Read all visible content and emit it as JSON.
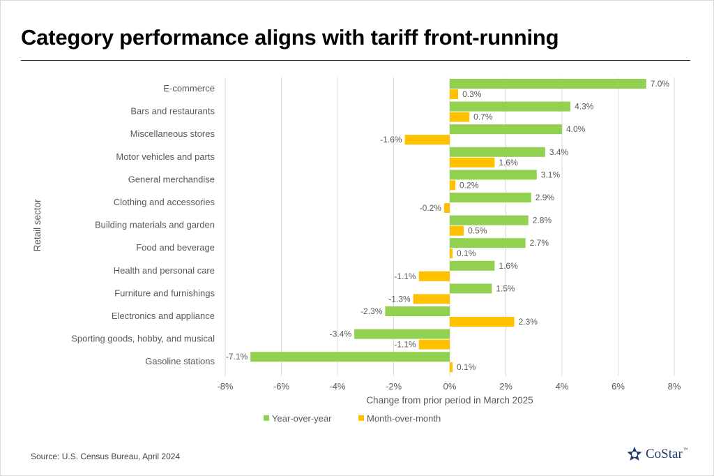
{
  "title": "Category performance aligns with tariff front-running",
  "source": "Source: U.S. Census Bureau, April 2024",
  "logo": {
    "text": "CoStar",
    "tm": "™",
    "icon": "costar-star-icon"
  },
  "colors": {
    "yoy": "#92d050",
    "mom": "#ffc000",
    "grid": "#d9d9d9",
    "text": "#595959"
  },
  "chart_data": {
    "type": "bar",
    "orientation": "horizontal",
    "categories": [
      "E-commerce",
      "Bars and restaurants",
      "Miscellaneous stores",
      "Motor vehicles and parts",
      "General merchandise",
      "Clothing and accessories",
      "Building materials and garden",
      "Food and beverage",
      "Health and personal care",
      "Furniture and furnishings",
      "Electronics and appliance",
      "Sporting goods, hobby, and musical",
      "Gasoline stations"
    ],
    "series": [
      {
        "name": "Year-over-year",
        "values": [
          7.0,
          4.3,
          4.0,
          3.4,
          3.1,
          2.9,
          2.8,
          2.7,
          1.6,
          1.5,
          -2.3,
          -3.4,
          -7.1
        ],
        "labels": [
          "7.0%",
          "4.3%",
          "4.0%",
          "3.4%",
          "3.1%",
          "2.9%",
          "2.8%",
          "2.7%",
          "1.6%",
          "1.5%",
          "-2.3%",
          "-3.4%",
          "-7.1%"
        ]
      },
      {
        "name": "Month-over-month",
        "values": [
          0.3,
          0.7,
          -1.6,
          1.6,
          0.2,
          -0.2,
          0.5,
          0.1,
          -1.1,
          -1.3,
          2.3,
          -1.1,
          0.1
        ],
        "labels": [
          "0.3%",
          "0.7%",
          "-1.6%",
          "1.6%",
          "0.2%",
          "-0.2%",
          "0.5%",
          "0.1%",
          "-1.1%",
          "-1.3%",
          "2.3%",
          "-1.1%",
          "0.1%"
        ]
      }
    ],
    "xlabel": "Change from prior period in March 2025",
    "ylabel": "Retail sector",
    "xlim": [
      -8,
      8
    ],
    "xticks": [
      -8,
      -6,
      -4,
      -2,
      0,
      2,
      4,
      6,
      8
    ],
    "xtick_labels": [
      "-8%",
      "-6%",
      "-4%",
      "-2%",
      "0%",
      "2%",
      "4%",
      "6%",
      "8%"
    ],
    "grid": "vertical",
    "legend": "bottom-center"
  }
}
